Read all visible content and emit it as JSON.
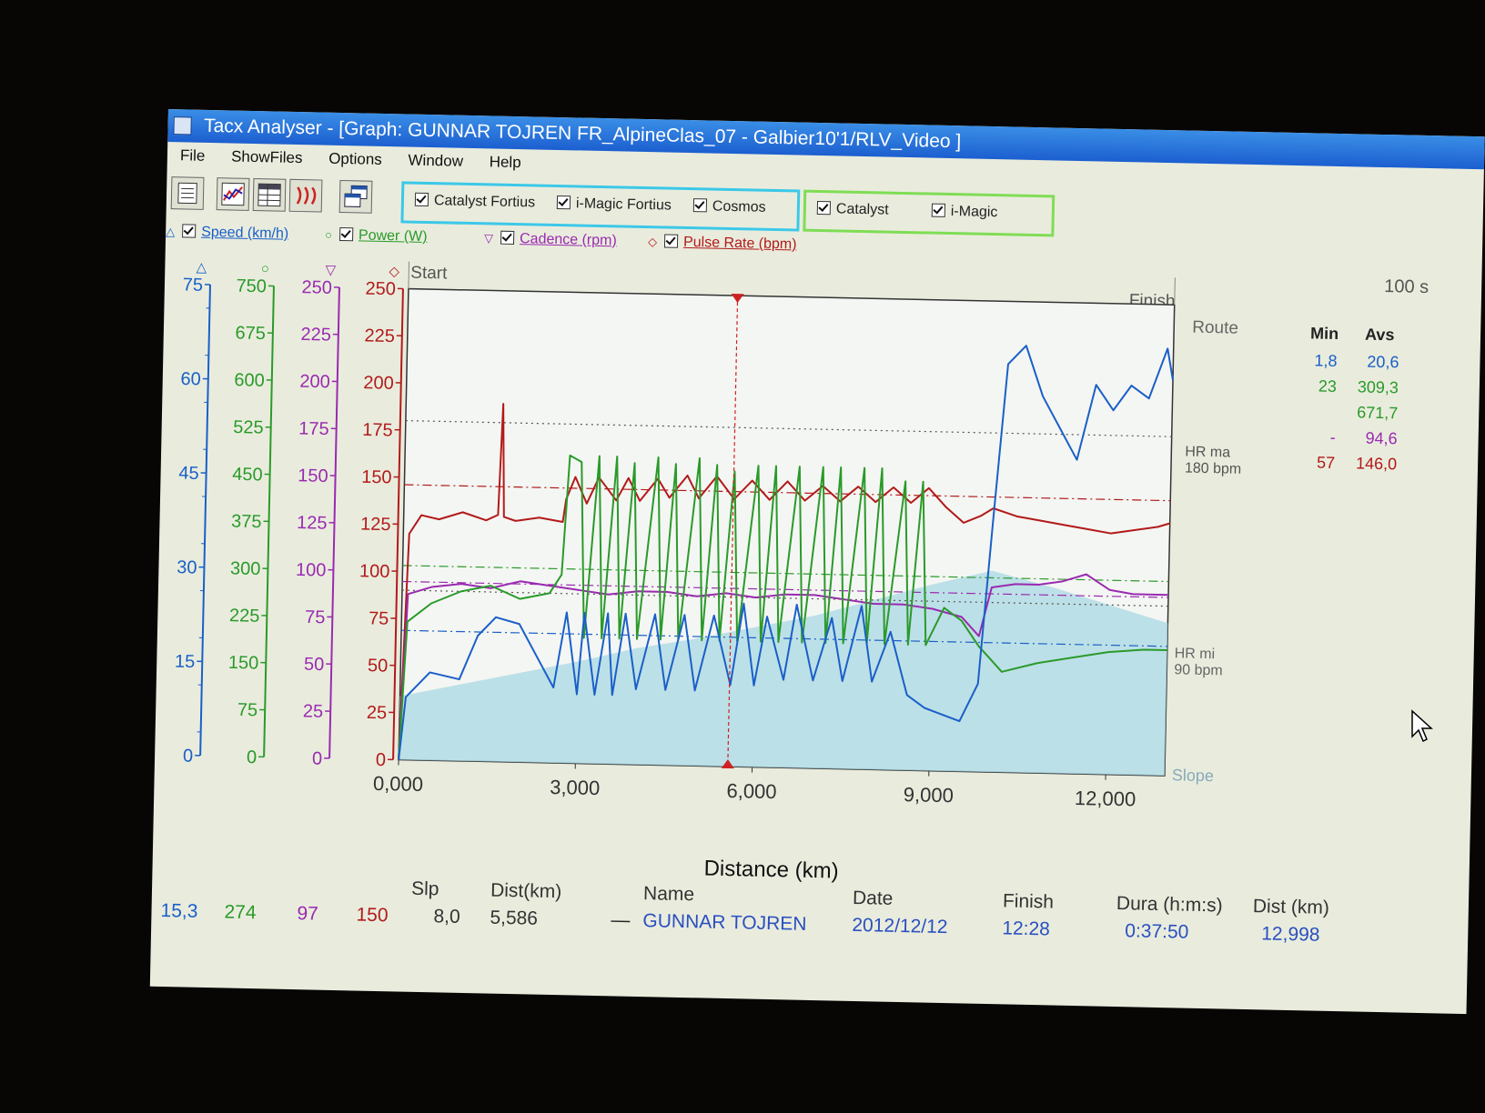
{
  "window": {
    "title": "Tacx Analyser - [Graph:  GUNNAR TOJREN  FR_AlpineClas_07 - Galbier10'1/RLV_Video  ]"
  },
  "menu": [
    "File",
    "ShowFiles",
    "Options",
    "Window",
    "Help"
  ],
  "toolbar": {
    "buttons": [
      "report-icon",
      "graph-icon",
      "table-icon",
      "laps-icon",
      "windows-icon"
    ],
    "group1": [
      {
        "label": "Catalyst Fortius",
        "checked": true
      },
      {
        "label": "i-Magic Fortius",
        "checked": true
      },
      {
        "label": "Cosmos",
        "checked": true
      }
    ],
    "group2": [
      {
        "label": "Catalyst",
        "checked": true
      },
      {
        "label": "i-Magic",
        "checked": true
      }
    ],
    "side_text": "100 s"
  },
  "channels": [
    {
      "label": "Speed (km/h)",
      "marker": "△",
      "color": "#1a5fc8"
    },
    {
      "label": "Power (W)",
      "marker": "○",
      "color": "#2a9a2a"
    },
    {
      "label": "Cadence (rpm)",
      "marker": "▽",
      "color": "#9a2ab0"
    },
    {
      "label": "Pulse Rate (bpm)",
      "marker": "◇",
      "color": "#b21a1a"
    }
  ],
  "graph": {
    "start_label": "Start",
    "finish_label": "Finish",
    "route_label": "Route",
    "slope_label": "Slope",
    "hr_max_label": "HR ma",
    "hr_max_value": "180 bpm",
    "hr_min_label": "HR mi",
    "hr_min_value": "90 bpm",
    "xlabel": "Distance (km)"
  },
  "chart_data": {
    "type": "line",
    "xlabel": "Distance (km)",
    "xlim": [
      0,
      13
    ],
    "x_ticks": [
      "0,000",
      "3,000",
      "6,000",
      "9,000",
      "12,000"
    ],
    "cursor_x": 5.586,
    "axes": [
      {
        "name": "speed",
        "color": "#1a5fc8",
        "marker": "△",
        "ylim": [
          0,
          75
        ],
        "ticks": [
          "0",
          "15",
          "30",
          "45",
          "60",
          "75"
        ]
      },
      {
        "name": "power",
        "color": "#2a9a2a",
        "marker": "○",
        "ylim": [
          0,
          750
        ],
        "ticks": [
          "0",
          "75",
          "150",
          "225",
          "300",
          "375",
          "450",
          "525",
          "600",
          "675",
          "750"
        ]
      },
      {
        "name": "cadence",
        "color": "#9a2ab0",
        "marker": "▽",
        "ylim": [
          0,
          250
        ],
        "ticks": [
          "0",
          "25",
          "50",
          "75",
          "100",
          "125",
          "150",
          "175",
          "200",
          "225",
          "250"
        ]
      },
      {
        "name": "pulse",
        "color": "#b21a1a",
        "marker": "◇",
        "ylim": [
          0,
          250
        ],
        "ticks": [
          "0",
          "25",
          "50",
          "75",
          "100",
          "125",
          "150",
          "175",
          "200",
          "225",
          "250"
        ]
      }
    ],
    "reference_lines": [
      {
        "series": "pulse",
        "y": 180,
        "style": "dotted",
        "color": "#555"
      },
      {
        "series": "pulse",
        "y": 146,
        "style": "dashdot",
        "color": "#b21a1a"
      },
      {
        "series": "cadence",
        "y": 94.6,
        "style": "dashdot",
        "color": "#9a2ab0"
      },
      {
        "series": "power",
        "y": 309.3,
        "style": "dashdot",
        "color": "#2a9a2a"
      },
      {
        "series": "speed",
        "y": 20.6,
        "style": "dashdot",
        "color": "#1a5fc8"
      },
      {
        "series": "pulse",
        "y": 90,
        "style": "dotted",
        "color": "#555"
      }
    ],
    "slope_profile": {
      "x": [
        0,
        1,
        2,
        3,
        4,
        5,
        6,
        7,
        8,
        9,
        10,
        11,
        12,
        13
      ],
      "y": [
        30,
        36,
        42,
        48,
        55,
        60,
        66,
        72,
        80,
        88,
        95,
        88,
        80,
        72
      ]
    },
    "series": [
      {
        "name": "pulse",
        "color": "#b21a1a",
        "x": [
          0,
          0.1,
          0.3,
          0.6,
          1.0,
          1.4,
          1.6,
          1.65,
          1.7,
          1.9,
          2.3,
          2.7,
          2.75,
          2.9,
          3.1,
          3.3,
          3.6,
          3.8,
          4.0,
          4.3,
          4.5,
          4.8,
          5.0,
          5.3,
          5.6,
          5.9,
          6.2,
          6.5,
          6.8,
          7.1,
          7.4,
          7.7,
          8.0,
          8.3,
          8.6,
          8.9,
          9.2,
          9.5,
          9.8,
          10.0,
          10.4,
          10.8,
          11.2,
          11.6,
          12.0,
          12.4,
          12.8,
          13.0
        ],
        "y": [
          0,
          120,
          130,
          128,
          132,
          128,
          131,
          190,
          130,
          128,
          130,
          128,
          140,
          152,
          138,
          152,
          140,
          152,
          140,
          152,
          142,
          154,
          142,
          154,
          142,
          152,
          142,
          152,
          142,
          150,
          142,
          150,
          142,
          150,
          142,
          150,
          140,
          132,
          136,
          140,
          136,
          134,
          132,
          130,
          128,
          130,
          132,
          134
        ]
      },
      {
        "name": "cadence",
        "color": "#9a2ab0",
        "x": [
          0,
          0.1,
          0.5,
          1.0,
          1.5,
          2.0,
          2.5,
          3.0,
          3.5,
          4.0,
          4.5,
          5.0,
          5.5,
          6.0,
          6.5,
          7.0,
          7.5,
          8.0,
          8.5,
          9.0,
          9.5,
          9.8,
          10.0,
          10.4,
          10.8,
          11.2,
          11.6,
          12.0,
          12.4,
          12.8,
          13.0
        ],
        "y": [
          0,
          88,
          92,
          94,
          92,
          96,
          94,
          92,
          90,
          92,
          92,
          90,
          92,
          90,
          92,
          92,
          90,
          88,
          88,
          86,
          82,
          72,
          98,
          100,
          100,
          102,
          106,
          98,
          96,
          96,
          96
        ]
      },
      {
        "name": "power",
        "color": "#2a9a2a",
        "x": [
          0,
          0.1,
          0.5,
          1.0,
          1.5,
          2.0,
          2.5,
          2.7,
          2.8,
          3.0,
          3.1,
          3.3,
          3.4,
          3.6,
          3.7,
          3.9,
          4.0,
          4.3,
          4.4,
          4.6,
          4.7,
          5.0,
          5.1,
          5.3,
          5.4,
          5.6,
          5.7,
          6.0,
          6.1,
          6.3,
          6.4,
          6.7,
          6.8,
          7.1,
          7.2,
          7.4,
          7.5,
          7.8,
          7.9,
          8.1,
          8.2,
          8.5,
          8.6,
          8.8,
          8.9,
          9.2,
          9.5,
          9.8,
          10.0,
          10.2,
          10.8,
          11.4,
          12.0,
          12.6,
          13.0
        ],
        "y": [
          0,
          220,
          250,
          270,
          280,
          260,
          270,
          300,
          490,
          480,
          200,
          490,
          200,
          490,
          200,
          480,
          200,
          490,
          200,
          480,
          200,
          490,
          200,
          480,
          200,
          470,
          200,
          480,
          200,
          480,
          200,
          480,
          200,
          480,
          200,
          480,
          200,
          480,
          200,
          480,
          200,
          460,
          200,
          460,
          200,
          260,
          240,
          200,
          180,
          160,
          175,
          185,
          195,
          200,
          200
        ]
      },
      {
        "name": "speed",
        "color": "#1a5fc8",
        "x": [
          0,
          0.1,
          0.5,
          1.0,
          1.3,
          1.6,
          2.0,
          2.3,
          2.6,
          2.8,
          3.0,
          3.1,
          3.3,
          3.5,
          3.6,
          3.8,
          4.0,
          4.3,
          4.5,
          4.8,
          5.0,
          5.3,
          5.6,
          5.8,
          6.0,
          6.2,
          6.5,
          6.7,
          7.0,
          7.3,
          7.5,
          7.8,
          8.0,
          8.3,
          8.6,
          8.9,
          9.2,
          9.5,
          9.8,
          10.0,
          10.2,
          10.5,
          10.8,
          11.1,
          11.4,
          11.7,
          12.0,
          12.3,
          12.6,
          12.9,
          13.0
        ],
        "y": [
          0,
          10,
          14,
          13,
          20,
          23,
          22,
          17,
          12,
          24,
          11,
          24,
          11,
          24,
          11,
          24,
          12,
          24,
          12,
          24,
          12,
          24,
          13,
          26,
          13,
          24,
          14,
          26,
          14,
          24,
          14,
          26,
          14,
          22,
          12,
          10,
          9,
          8,
          14,
          40,
          65,
          68,
          60,
          55,
          50,
          62,
          58,
          62,
          60,
          68,
          63
        ]
      }
    ]
  },
  "stats": {
    "headers": [
      "Min",
      "Avs"
    ],
    "rows": [
      {
        "min": "1,8",
        "avg": "20,6",
        "color": "#1a5fc8"
      },
      {
        "min": "23",
        "avg": "309,3",
        "color": "#2a9a2a"
      },
      {
        "min": "",
        "avg": "671,7",
        "color": "#2a9a2a"
      },
      {
        "min": "-",
        "avg": "94,6",
        "color": "#9a2ab0"
      },
      {
        "min": "57",
        "avg": "146,0",
        "color": "#b21a1a"
      }
    ]
  },
  "footer": {
    "cursor_values": [
      {
        "value": "15,3",
        "color": "#1a5fc8"
      },
      {
        "value": "274",
        "color": "#2a9a2a"
      },
      {
        "value": "97",
        "color": "#9a2ab0"
      },
      {
        "value": "150",
        "color": "#b21a1a"
      }
    ],
    "slp_label": "Slp",
    "slp_value": "8,0",
    "dist_label": "Dist(km)",
    "dist_value": "5,586",
    "name_label": "Name",
    "name_value": "GUNNAR TOJREN",
    "date_label": "Date",
    "date_value": "2012/12/12",
    "finish_label": "Finish",
    "finish_value": "12:28",
    "duration_label": "Dura (h:m:s)",
    "duration_value": "0:37:50",
    "total_dist_label": "Dist (km)",
    "total_dist_value": "12,998"
  }
}
